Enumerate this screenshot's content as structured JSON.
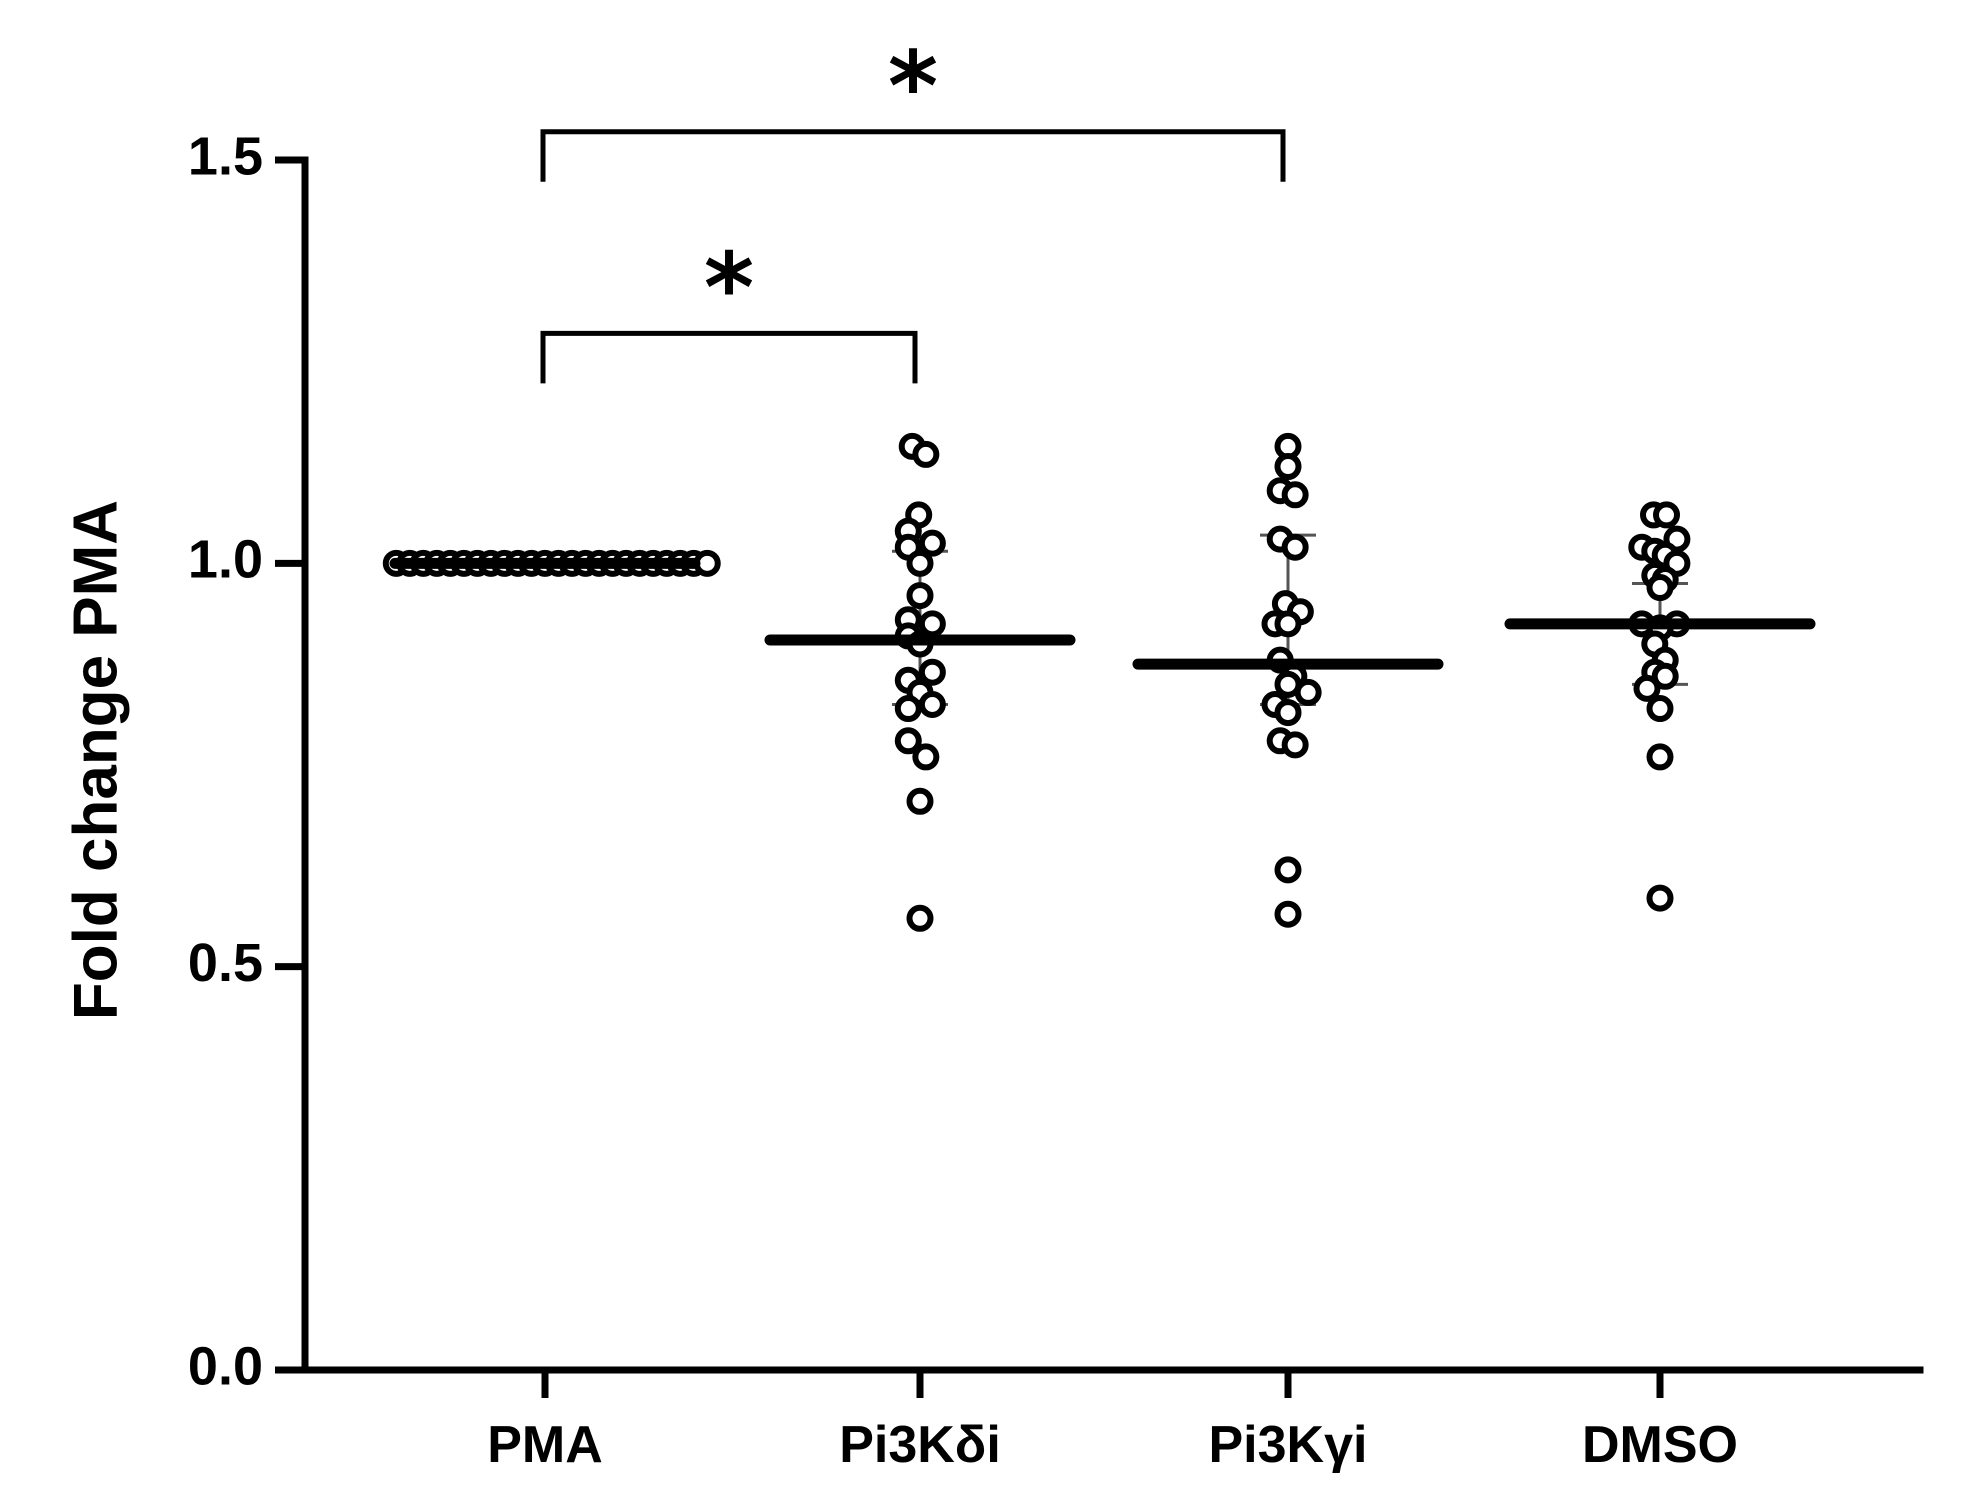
{
  "chart_data": {
    "type": "scatter",
    "title": "",
    "xlabel": "",
    "ylabel": "Fold change PMA",
    "ylim": [
      0,
      1.5
    ],
    "yticks": [
      0.0,
      0.5,
      1.0,
      1.5
    ],
    "ytick_labels": [
      "0.0",
      "0.5",
      "1.0",
      "1.5"
    ],
    "categories": [
      "PMA",
      "Pi3Kδi",
      "Pi3Kγi",
      "DMSO"
    ],
    "grid": false,
    "groups": [
      {
        "name": "PMA",
        "mean": 1.0,
        "err_low": 1.0,
        "err_high": 1.0,
        "points": [
          1.0,
          1.0,
          1.0,
          1.0,
          1.0,
          1.0,
          1.0,
          1.0,
          1.0,
          1.0,
          1.0,
          1.0,
          1.0,
          1.0,
          1.0,
          1.0,
          1.0,
          1.0,
          1.0,
          1.0,
          1.0,
          1.0,
          1.0,
          1.0
        ],
        "offsets": [
          -0.44,
          -0.4,
          -0.36,
          -0.32,
          -0.28,
          -0.24,
          -0.2,
          -0.16,
          -0.12,
          -0.08,
          -0.04,
          0.0,
          0.04,
          0.08,
          0.12,
          0.16,
          0.2,
          0.24,
          0.28,
          0.32,
          0.36,
          0.4,
          0.44,
          0.48
        ]
      },
      {
        "name": "Pi3Kδi",
        "mean": 0.905,
        "err_low": 0.825,
        "err_high": 1.015,
        "points": [
          1.145,
          1.135,
          1.06,
          1.04,
          1.025,
          1.02,
          1.0,
          0.96,
          0.93,
          0.925,
          0.91,
          0.9,
          0.865,
          0.855,
          0.84,
          0.825,
          0.82,
          0.78,
          0.76,
          0.705,
          0.56
        ],
        "offsets": [
          -0.06,
          0.045,
          -0.01,
          -0.09,
          0.095,
          -0.09,
          0.0,
          0.0,
          -0.09,
          0.095,
          -0.09,
          0.0,
          0.095,
          -0.09,
          0.0,
          0.095,
          -0.09,
          -0.09,
          0.045,
          0.0,
          0.0
        ]
      },
      {
        "name": "Pi3Kγi",
        "mean": 0.875,
        "err_low": 0.825,
        "err_high": 1.035,
        "points": [
          1.145,
          1.12,
          1.09,
          1.085,
          1.03,
          1.02,
          0.95,
          0.94,
          0.925,
          0.925,
          0.88,
          0.86,
          0.85,
          0.84,
          0.825,
          0.815,
          0.78,
          0.775,
          0.62,
          0.565
        ],
        "offsets": [
          0.0,
          0.0,
          -0.06,
          0.055,
          -0.06,
          0.055,
          -0.02,
          0.095,
          -0.1,
          0.0,
          -0.06,
          0.045,
          0.0,
          0.155,
          -0.1,
          0.0,
          -0.06,
          0.055,
          0.0,
          0.0
        ]
      },
      {
        "name": "DMSO",
        "mean": 0.925,
        "err_low": 0.85,
        "err_high": 0.975,
        "points": [
          1.06,
          1.06,
          1.03,
          1.02,
          1.015,
          1.01,
          1.0,
          0.985,
          0.98,
          0.97,
          0.925,
          0.925,
          0.92,
          0.9,
          0.88,
          0.865,
          0.86,
          0.845,
          0.82,
          0.76,
          0.585
        ],
        "offsets": [
          -0.05,
          0.05,
          0.13,
          -0.14,
          -0.04,
          0.04,
          0.13,
          -0.04,
          0.04,
          0.0,
          -0.14,
          0.13,
          0.0,
          -0.04,
          0.04,
          -0.04,
          0.04,
          -0.1,
          0.0,
          0.0,
          0.0
        ]
      }
    ],
    "annotations": [
      {
        "type": "bracket",
        "from": "PMA",
        "to": "Pi3Kδi",
        "y": 1.285,
        "label": "*"
      },
      {
        "type": "bracket",
        "from": "PMA",
        "to": "Pi3Kγi",
        "y": 1.535,
        "label": "*"
      }
    ]
  }
}
